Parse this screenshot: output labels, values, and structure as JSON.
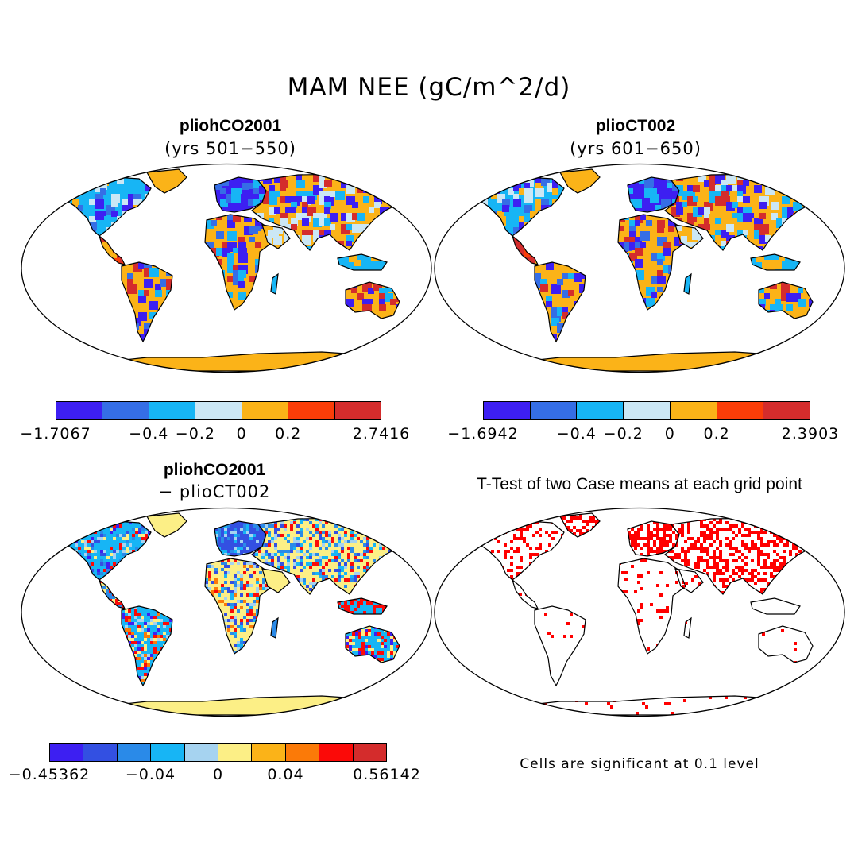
{
  "title": "MAM NEE (gC/m^2/d)",
  "panels": {
    "p1": {
      "title": "pliohCO2001",
      "subtitle": "(yrs 501−550)",
      "colors": [
        "#3d1ff2",
        "#356ee6",
        "#17b5f5",
        "#cbe7f5",
        "#fbb318",
        "#fb3d08",
        "#d42c2c"
      ],
      "labels": [
        "−1.7067",
        "−0.4",
        "−0.2",
        "0",
        "0.2",
        "2.7416"
      ]
    },
    "p2": {
      "title": "plioCT002",
      "subtitle": "(yrs 601−650)",
      "colors": [
        "#3d1ff2",
        "#356ee6",
        "#17b5f5",
        "#cbe7f5",
        "#fbb318",
        "#fb3d08",
        "#d42c2c"
      ],
      "labels": [
        "−1.6942",
        "−0.4",
        "−0.2",
        "0",
        "0.2",
        "2.3903"
      ]
    },
    "p3": {
      "title": "pliohCO2001",
      "subtitle": "− plioCT002",
      "colors": [
        "#3d1ff2",
        "#3350e2",
        "#2a8ae8",
        "#17b5f5",
        "#a6d3f0",
        "#fcef86",
        "#fbb318",
        "#fb7a08",
        "#fb0a08",
        "#d42c2c"
      ],
      "labels": [
        "−0.45362",
        "−0.04",
        "0",
        "0.04",
        "0.56142"
      ]
    },
    "p4": {
      "title": "T-Test of two Case means at each grid point",
      "note": "Cells are significant at 0.1 level",
      "color": "#ff0000"
    }
  }
}
